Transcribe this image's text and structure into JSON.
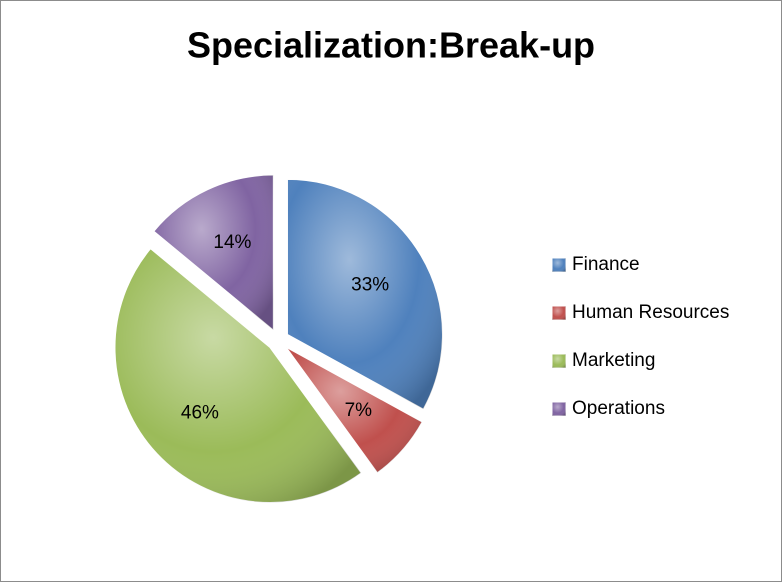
{
  "chart_data": {
    "type": "pie",
    "title": "Specialization:Break-up",
    "categories": [
      "Finance",
      "Human Resources",
      "Marketing",
      "Operations"
    ],
    "values": [
      33,
      7,
      46,
      14
    ],
    "value_labels": [
      "33%",
      "7%",
      "46%",
      "14%"
    ],
    "colors": [
      "#4f81bd",
      "#c0504d",
      "#9bbb59",
      "#8064a2"
    ],
    "legend": "right"
  }
}
